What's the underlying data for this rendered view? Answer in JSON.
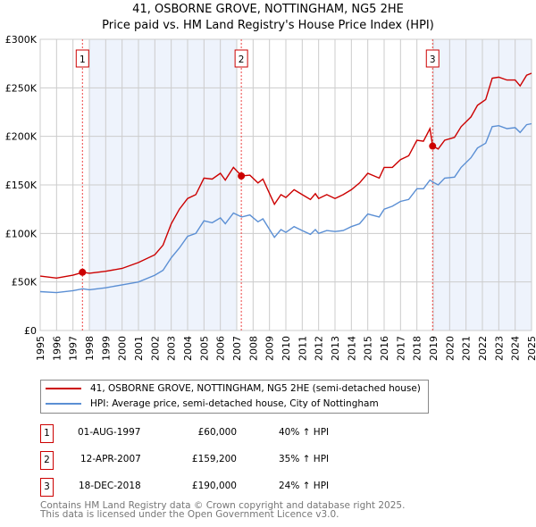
{
  "chart_data": {
    "type": "line",
    "title": "41, OSBORNE GROVE, NOTTINGHAM, NG5 2HE",
    "subtitle": "Price paid vs. HM Land Registry's House Price Index (HPI)",
    "xlim": [
      1995,
      2025
    ],
    "ylim": [
      0,
      300000
    ],
    "yticks": [
      {
        "v": 0,
        "label": "£0"
      },
      {
        "v": 50000,
        "label": "£50K"
      },
      {
        "v": 100000,
        "label": "£100K"
      },
      {
        "v": 150000,
        "label": "£150K"
      },
      {
        "v": 200000,
        "label": "£200K"
      },
      {
        "v": 250000,
        "label": "£250K"
      },
      {
        "v": 300000,
        "label": "£300K"
      }
    ],
    "xticks": [
      "1995",
      "1996",
      "1997",
      "1998",
      "1999",
      "2000",
      "2001",
      "2002",
      "2003",
      "2004",
      "2005",
      "2006",
      "2007",
      "2008",
      "2009",
      "2010",
      "2011",
      "2012",
      "2013",
      "2014",
      "2015",
      "2016",
      "2017",
      "2018",
      "2019",
      "2020",
      "2021",
      "2022",
      "2023",
      "2024",
      "2025"
    ],
    "grid": true,
    "shaded_ranges": [
      [
        1998,
        2007
      ],
      [
        2019,
        2025
      ]
    ],
    "series": [
      {
        "name": "41, OSBORNE GROVE, NOTTINGHAM, NG5 2HE (semi-detached house)",
        "color": "#cc0000",
        "x": [
          1995,
          1996,
          1997,
          1997.6,
          1998,
          1999,
          2000,
          2001,
          2002,
          2002.5,
          2003,
          2003.5,
          2004,
          2004.5,
          2005,
          2005.5,
          2006,
          2006.3,
          2006.8,
          2007.3,
          2007.8,
          2008.3,
          2008.6,
          2009.3,
          2009.7,
          2010,
          2010.5,
          2011,
          2011.5,
          2011.8,
          2012,
          2012.5,
          2013,
          2013.5,
          2014,
          2014.5,
          2015,
          2015.7,
          2016,
          2016.5,
          2017,
          2017.5,
          2018,
          2018.4,
          2018.8,
          2018.96,
          2019.3,
          2019.7,
          2020.3,
          2020.7,
          2021.3,
          2021.7,
          2022.2,
          2022.6,
          2023,
          2023.5,
          2024,
          2024.3,
          2024.7,
          2025
        ],
        "y": [
          56000,
          54000,
          57000,
          60000,
          59000,
          61000,
          64000,
          70000,
          78000,
          88000,
          110000,
          125000,
          136000,
          140000,
          157000,
          156000,
          162000,
          155000,
          168000,
          159200,
          160000,
          152000,
          156000,
          130000,
          140000,
          137000,
          145000,
          140000,
          135000,
          141000,
          136000,
          140000,
          136000,
          140000,
          145000,
          152000,
          162000,
          157000,
          168000,
          168000,
          176000,
          180000,
          196000,
          195000,
          208000,
          190000,
          187000,
          196000,
          199000,
          210000,
          220000,
          232000,
          238000,
          260000,
          261000,
          258000,
          258000,
          252000,
          263000,
          265000
        ]
      },
      {
        "name": "HPI: Average price, semi-detached house, City of Nottingham",
        "color": "#5b8fd4",
        "x": [
          1995,
          1996,
          1997,
          1997.6,
          1998,
          1999,
          2000,
          2001,
          2002,
          2002.5,
          2003,
          2003.5,
          2004,
          2004.5,
          2005,
          2005.5,
          2006,
          2006.3,
          2006.8,
          2007.3,
          2007.8,
          2008.3,
          2008.6,
          2009.3,
          2009.7,
          2010,
          2010.5,
          2011,
          2011.5,
          2011.8,
          2012,
          2012.5,
          2013,
          2013.5,
          2014,
          2014.5,
          2015,
          2015.7,
          2016,
          2016.5,
          2017,
          2017.5,
          2018,
          2018.4,
          2018.8,
          2018.96,
          2019.3,
          2019.7,
          2020.3,
          2020.7,
          2021.3,
          2021.7,
          2022.2,
          2022.6,
          2023,
          2023.5,
          2024,
          2024.3,
          2024.7,
          2025
        ],
        "y": [
          40000,
          39000,
          41000,
          43000,
          42000,
          44000,
          47000,
          50000,
          57000,
          62000,
          75000,
          85000,
          97000,
          100000,
          113000,
          111000,
          116000,
          110000,
          121000,
          117000,
          119000,
          112000,
          115000,
          96000,
          104000,
          101000,
          107000,
          103000,
          99000,
          104000,
          100000,
          103000,
          102000,
          103000,
          107000,
          110000,
          120000,
          117000,
          125000,
          128000,
          133000,
          135000,
          146000,
          146000,
          155000,
          153000,
          150000,
          157000,
          158000,
          168000,
          178000,
          188000,
          193000,
          210000,
          211000,
          208000,
          209000,
          204000,
          212000,
          213000
        ]
      }
    ],
    "sales": [
      {
        "label": "1",
        "x": 1997.58,
        "price": 60000,
        "date": "01-AUG-1997",
        "price_text": "£60,000",
        "hpi_text": "40% ↑ HPI"
      },
      {
        "label": "2",
        "x": 2007.28,
        "price": 159200,
        "date": "12-APR-2007",
        "price_text": "£159,200",
        "hpi_text": "35% ↑ HPI"
      },
      {
        "label": "3",
        "x": 2018.96,
        "price": 190000,
        "date": "18-DEC-2018",
        "price_text": "£190,000",
        "hpi_text": "24% ↑ HPI"
      }
    ]
  },
  "footer": {
    "line1": "Contains HM Land Registry data © Crown copyright and database right 2025.",
    "line2": "This data is licensed under the Open Government Licence v3.0."
  }
}
